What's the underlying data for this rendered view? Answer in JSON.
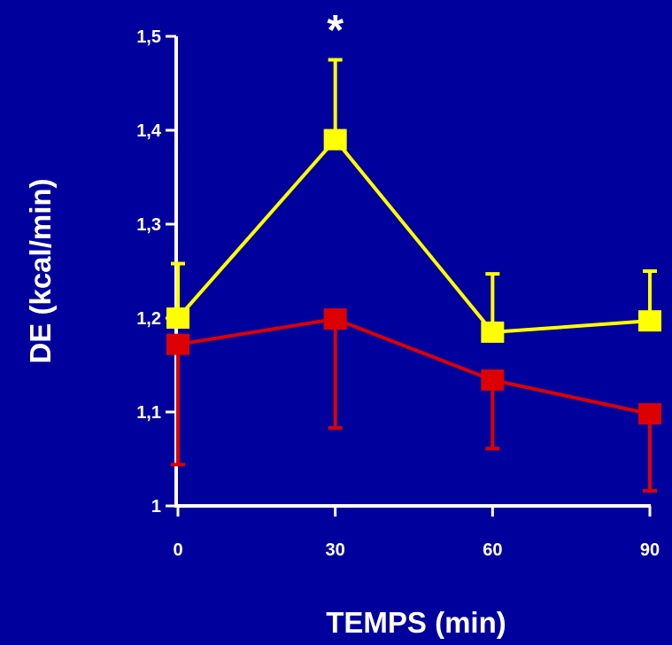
{
  "chart_data": {
    "type": "line",
    "xlabel": "TEMPS (min)",
    "ylabel": "DE (kcal/min)",
    "x": [
      0,
      30,
      60,
      90
    ],
    "x_tick_labels": [
      "0",
      "30",
      "60",
      "90"
    ],
    "y_ticks": [
      1,
      1.1,
      1.2,
      1.3,
      1.4,
      1.5
    ],
    "y_tick_labels": [
      "1",
      "1,1",
      "1,2",
      "1,3",
      "1,4",
      "1,5"
    ],
    "xlim": [
      0,
      90
    ],
    "ylim": [
      1,
      1.5
    ],
    "grid": false,
    "annotations": [
      {
        "text": "*",
        "x": 30
      }
    ],
    "series": [
      {
        "color": "#ffff00",
        "marker": "square",
        "values": [
          1.2,
          1.39,
          1.185,
          1.197
        ],
        "error_upper": [
          0.058,
          0.085,
          0.062,
          0.053
        ],
        "error_lower": [
          0,
          0,
          0,
          0
        ]
      },
      {
        "color": "#dd0000",
        "marker": "square",
        "values": [
          1.172,
          1.199,
          1.134,
          1.098
        ],
        "error_upper": [
          0,
          0,
          0,
          0
        ],
        "error_lower": [
          0.128,
          0.116,
          0.073,
          0.082
        ]
      }
    ]
  }
}
